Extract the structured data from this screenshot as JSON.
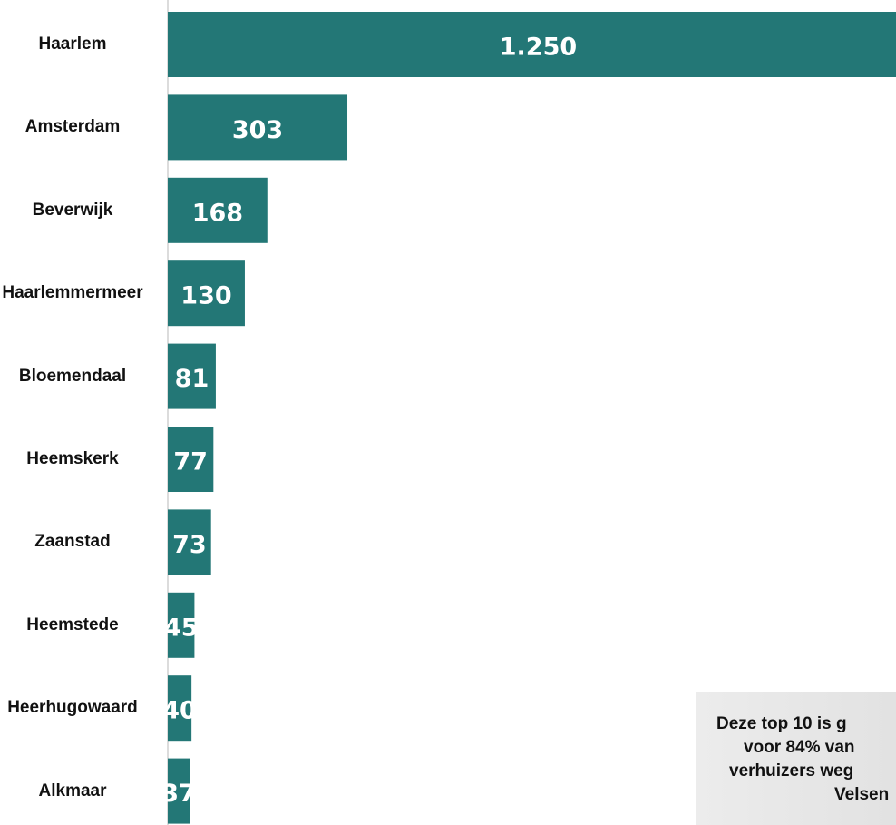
{
  "chart_data": {
    "type": "bar",
    "orientation": "horizontal",
    "categories": [
      "Haarlem",
      "Amsterdam",
      "Beverwijk",
      "Haarlemmermeer",
      "Bloemendaal",
      "Heemskerk",
      "Zaanstad",
      "Heemstede",
      "Heerhugowaard",
      "Alkmaar"
    ],
    "values": [
      1250,
      303,
      168,
      130,
      81,
      77,
      73,
      45,
      40,
      37
    ],
    "value_labels": [
      "1.250",
      "303",
      "168",
      "130",
      "81",
      "77",
      "73",
      "45",
      "40",
      "37"
    ],
    "color": "#237776",
    "annotation": [
      "Deze top 10 is g",
      "voor 84% van",
      "verhuizers weg",
      "Velsen"
    ]
  }
}
